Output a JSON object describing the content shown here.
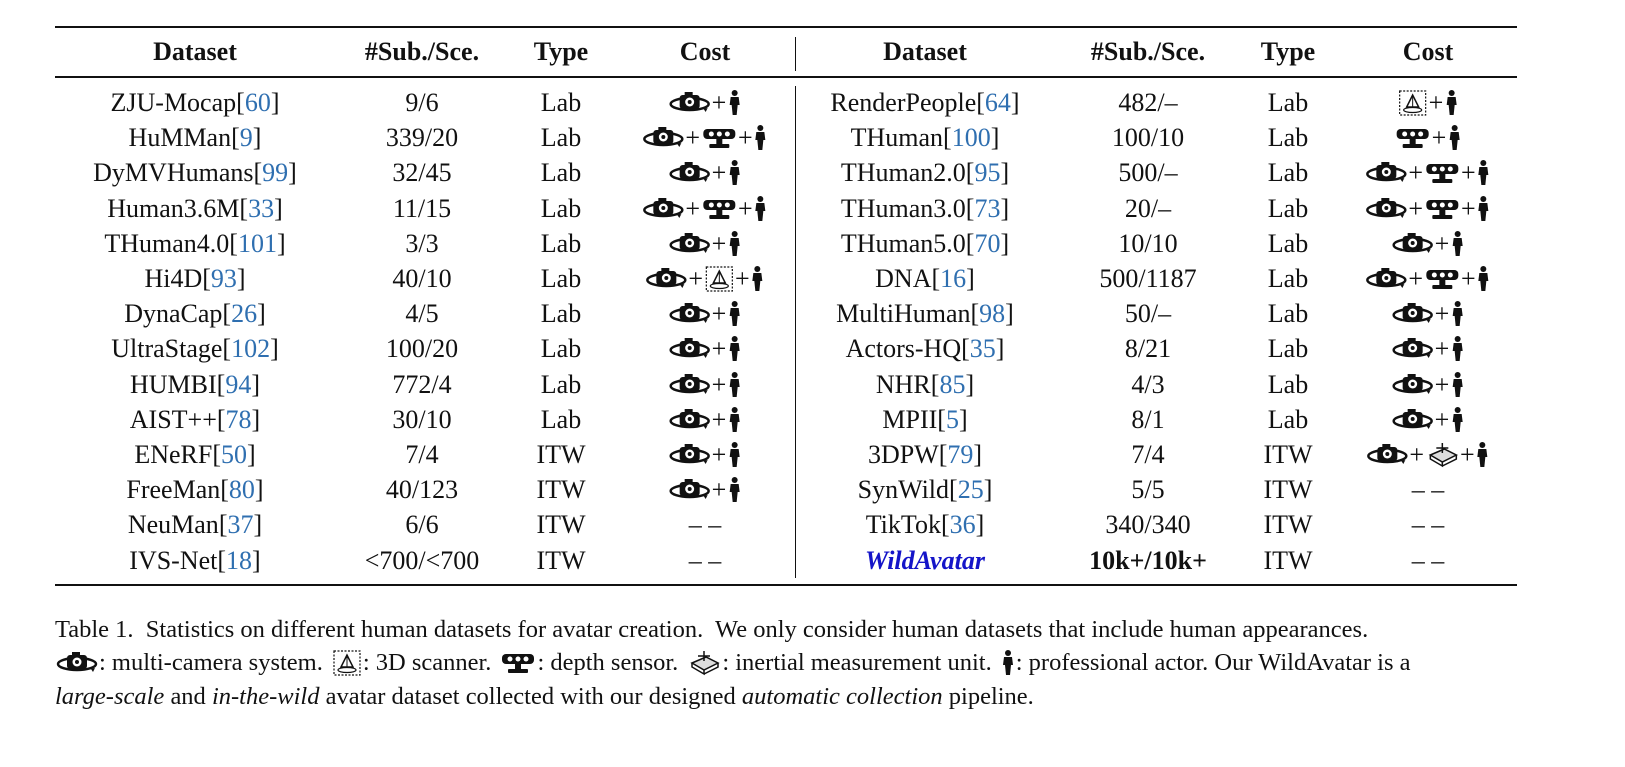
{
  "table": {
    "brackets": [
      "[",
      "]"
    ],
    "plus": "+",
    "header": [
      "Dataset",
      "#Sub./Sce.",
      "Type",
      "Cost"
    ],
    "left": [
      {
        "name": "ZJU-Mocap",
        "ref": 60,
        "sub": "9/6",
        "type": "Lab"
      },
      {
        "name": "HuMMan",
        "ref": 9,
        "sub": "339/20",
        "type": "Lab"
      },
      {
        "name": "DyMVHumans",
        "ref": 99,
        "sub": "32/45",
        "type": "Lab"
      },
      {
        "name": "Human3.6M",
        "ref": 33,
        "sub": "11/15",
        "type": "Lab"
      },
      {
        "name": "THuman4.0",
        "ref": 101,
        "sub": "3/3",
        "type": "Lab"
      },
      {
        "name": "Hi4D",
        "ref": 93,
        "sub": "40/10",
        "type": "Lab"
      },
      {
        "name": "DynaCap",
        "ref": 26,
        "sub": "4/5",
        "type": "Lab"
      },
      {
        "name": "UltraStage",
        "ref": 102,
        "sub": "100/20",
        "type": "Lab"
      },
      {
        "name": "HUMBI",
        "ref": 94,
        "sub": "772/4",
        "type": "Lab"
      },
      {
        "name": "AIST++",
        "ref": 78,
        "sub": "30/10",
        "type": "Lab"
      },
      {
        "name": "ENeRF",
        "ref": 50,
        "sub": "7/4",
        "type": "ITW"
      },
      {
        "name": "FreeMan",
        "ref": 80,
        "sub": "40/123",
        "type": "ITW"
      },
      {
        "name": "NeuMan",
        "ref": 37,
        "sub": "6/6",
        "type": "ITW",
        "cost": "– –"
      },
      {
        "name": "IVS-Net",
        "ref": 18,
        "sub": "<700/<700",
        "type": "ITW",
        "cost": "– –"
      }
    ],
    "right": [
      {
        "name": "RenderPeople",
        "ref": 64,
        "sub": "482/–",
        "type": "Lab"
      },
      {
        "name": "THuman",
        "ref": 100,
        "sub": "100/10",
        "type": "Lab"
      },
      {
        "name": "THuman2.0",
        "ref": 95,
        "sub": "500/–",
        "type": "Lab"
      },
      {
        "name": "THuman3.0",
        "ref": 73,
        "sub": "20/–",
        "type": "Lab"
      },
      {
        "name": "THuman5.0",
        "ref": 70,
        "sub": "10/10",
        "type": "Lab"
      },
      {
        "name": "DNA",
        "ref": 16,
        "sub": "500/1187",
        "type": "Lab"
      },
      {
        "name": "MultiHuman",
        "ref": 98,
        "sub": "50/–",
        "type": "Lab"
      },
      {
        "name": "Actors-HQ",
        "ref": 35,
        "sub": "8/21",
        "type": "Lab"
      },
      {
        "name": "NHR",
        "ref": 85,
        "sub": "4/3",
        "type": "Lab"
      },
      {
        "name": "MPII",
        "ref": 5,
        "sub": "8/1",
        "type": "Lab"
      },
      {
        "name": "3DPW",
        "ref": 79,
        "sub": "7/4",
        "type": "ITW"
      },
      {
        "name": "SynWild",
        "ref": 25,
        "sub": "5/5",
        "type": "ITW",
        "cost": "– –"
      },
      {
        "name": "TikTok",
        "ref": 36,
        "sub": "340/340",
        "type": "ITW",
        "cost": "– –"
      },
      {
        "name": "WildAvatar",
        "sub": "10k+/10k+",
        "type": "ITW",
        "cost": "– –"
      }
    ]
  },
  "caption": {
    "line1": "Table 1.  Statistics on different human datasets for avatar creation.  We only consider human datasets that include human appearances.",
    "legend": [
      ": multi-camera system.",
      ": 3D scanner.",
      ": depth sensor.",
      ": inertial measurement unit.",
      ": professional actor. Our WildAvatar is a"
    ],
    "line3": [
      "large-scale",
      " and ",
      "in-the-wild",
      " avatar dataset collected with our designed ",
      "automatic collection",
      " pipeline."
    ]
  }
}
